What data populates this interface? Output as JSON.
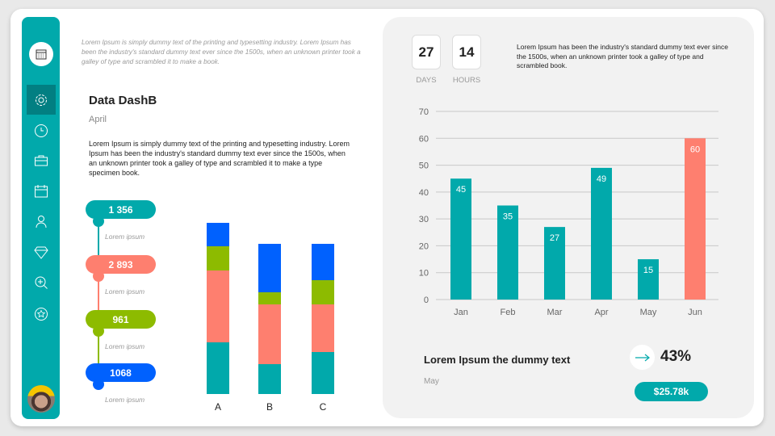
{
  "sidebar": {
    "items": [
      "calendar",
      "settings",
      "clock",
      "toolbox",
      "schedule",
      "users",
      "diamond",
      "zoom-in",
      "star"
    ],
    "active": "settings",
    "avatar": "user-avatar"
  },
  "intro_text": "Lorem Ipsum is simply dummy text of the printing and typesetting industry. Lorem Ipsum has been the industry's standard dummy text ever since the 1500s, when an unknown printer took a galley of type and scrambled it to make a book.",
  "header": {
    "title": "Data DashB",
    "month": "April",
    "description": "Lorem Ipsum is simply dummy text of the printing and typesetting industry. Lorem Ipsum has been the industry's standard dummy text ever since the 1500s, when an unknown printer took a galley of type and scrambled it to make a type specimen book."
  },
  "stats": [
    {
      "value": "1 356",
      "label": "Lorem ipsum",
      "color": "#01a9ab"
    },
    {
      "value": "2 893",
      "label": "Lorem ipsum",
      "color": "#fe7f6f"
    },
    {
      "value": "961",
      "label": "Lorem ipsum",
      "color": "#8dbb00"
    },
    {
      "value": "1068",
      "label": "Lorem ipsum",
      "color": "#0061fe"
    }
  ],
  "countdown": {
    "days": "27",
    "days_label": "DAYS",
    "hours": "14",
    "hours_label": "HOURS"
  },
  "panel_text": "Lorem Ipsum has been the industry's standard dummy text ever since the 1500s, when an unknown printer took a galley  of type and scrambled book.",
  "summary": {
    "title": "Lorem Ipsum the dummy text",
    "month": "May",
    "percent": "43%",
    "amount": "$25.78k",
    "accent": "#01a9ab"
  },
  "chart_data": [
    {
      "type": "bar",
      "stacked": true,
      "categories": [
        "A",
        "B",
        "C"
      ],
      "series": [
        {
          "color": "#01a9ab",
          "values": [
            64,
            37,
            52
          ]
        },
        {
          "color": "#fe7f6f",
          "values": [
            89,
            74,
            59
          ]
        },
        {
          "color": "#8dbb00",
          "values": [
            30,
            15,
            30
          ]
        },
        {
          "color": "#0061fe",
          "values": [
            29,
            60,
            45
          ]
        }
      ],
      "grid": false
    },
    {
      "type": "bar",
      "categories": [
        "Jan",
        "Feb",
        "Mar",
        "Apr",
        "May",
        "Jun"
      ],
      "values": [
        45,
        35,
        27,
        49,
        15,
        60
      ],
      "colors": [
        "#01a9ab",
        "#01a9ab",
        "#01a9ab",
        "#01a9ab",
        "#01a9ab",
        "#fe7f6f"
      ],
      "ylim": [
        0,
        70
      ],
      "yticks": [
        0,
        10,
        20,
        30,
        40,
        50,
        60,
        70
      ],
      "grid": true
    }
  ]
}
